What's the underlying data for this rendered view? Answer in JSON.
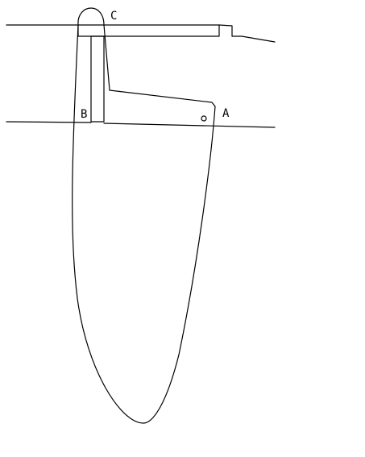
{
  "diagram": {
    "labels": {
      "a": "A",
      "b": "B",
      "c": "C"
    },
    "line_color": "#000000",
    "background_color": "#ffffff"
  }
}
